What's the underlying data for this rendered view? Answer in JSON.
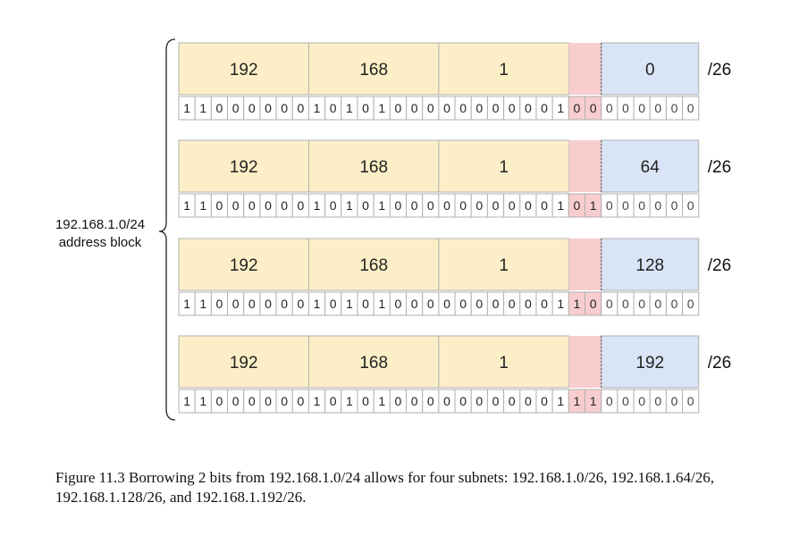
{
  "block_label": [
    "192.168.1.0/24",
    "address block"
  ],
  "colors": {
    "network_fill": "#fcefc7",
    "borrowed_fill": "#f7cdcd",
    "host_fill": "#d9e5f6",
    "border": "#b0b0b0"
  },
  "subnets": [
    {
      "octets": [
        "192",
        "168",
        "1",
        "0"
      ],
      "prefix": "/26",
      "bits": "11000000101010000000000100000000"
    },
    {
      "octets": [
        "192",
        "168",
        "1",
        "64"
      ],
      "prefix": "/26",
      "bits": "11000000101010000000000101000000"
    },
    {
      "octets": [
        "192",
        "168",
        "1",
        "128"
      ],
      "prefix": "/26",
      "bits": "11000000101010000000000110000000"
    },
    {
      "octets": [
        "192",
        "168",
        "1",
        "192"
      ],
      "prefix": "/26",
      "bits": "11000000101010000000000111000000"
    }
  ],
  "caption": "Figure 11.3 Borrowing 2 bits from 192.168.1.0/24 allows for four subnets: 192.168.1.0/26, 192.168.1.64/26, 192.168.1.128/26, and 192.168.1.192/26."
}
